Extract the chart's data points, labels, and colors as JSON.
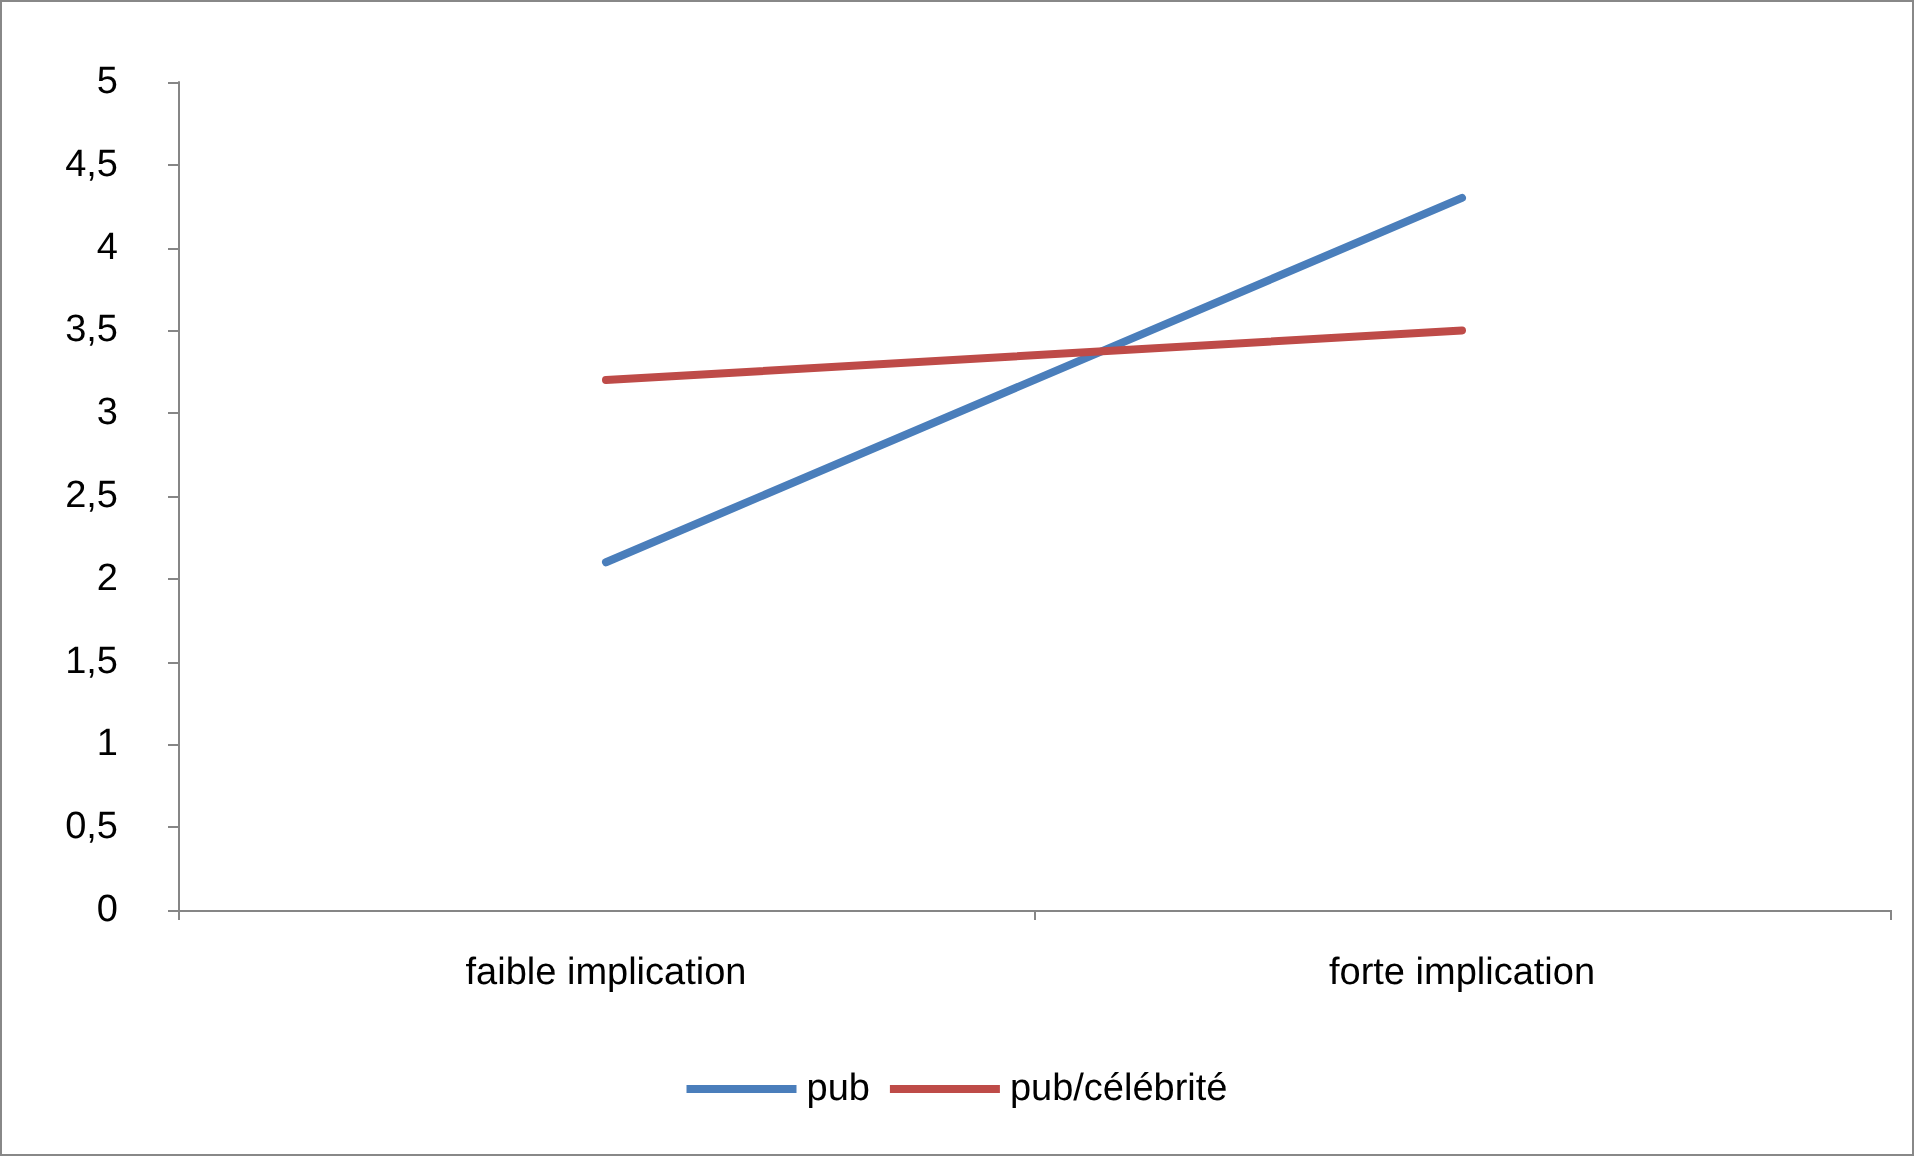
{
  "chart_data": {
    "type": "line",
    "categories": [
      "faible implication",
      "forte implication"
    ],
    "series": [
      {
        "name": "pub",
        "color": "#4a7ebb",
        "values": [
          2.1,
          4.3
        ]
      },
      {
        "name": "pub/célébrité",
        "color": "#be4b48",
        "values": [
          3.2,
          3.5
        ]
      }
    ],
    "ylim": [
      0,
      5
    ],
    "yticks": [
      0,
      {
        "value": 0.5,
        "label": "0,5"
      },
      1,
      {
        "value": 1.5,
        "label": "1,5"
      },
      2,
      {
        "value": 2.5,
        "label": "2,5"
      },
      3,
      {
        "value": 3.5,
        "label": "3,5"
      },
      4,
      {
        "value": 4.5,
        "label": "4,5"
      },
      5
    ],
    "grid": false,
    "legend": "bottom",
    "marker": "none",
    "line_style": "solid"
  }
}
